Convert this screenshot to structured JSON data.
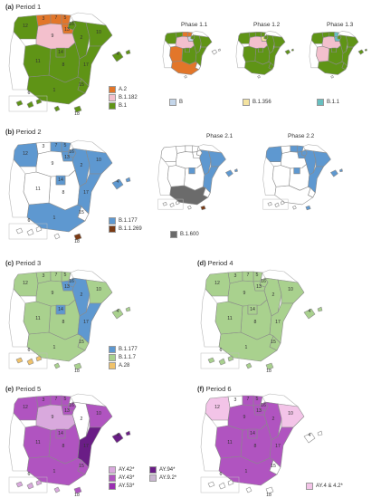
{
  "colors": {
    "A.2": "#e2762a",
    "B.1.182": "#f3c0cd",
    "B.1": "#5f9416",
    "B": "#c4d6ea",
    "B.1.356": "#f4e3a0",
    "B.1.1": "#67bfc0",
    "B.1.177": "#5e98d0",
    "B.1.1.269": "#7a3a14",
    "B.1.600": "#6b6b6b",
    "B.1.1.7": "#a9d18e",
    "A.28": "#f0c26a",
    "AY.42*": "#d9a9dd",
    "AY.43*": "#b054c0",
    "AY.53*": "#9a2fb2",
    "AY.94*": "#6a1d86",
    "AY.9.2*": "#c9b6d0",
    "AY.4 & 4.2*": "#f3c4e8",
    "empty": "#ffffff",
    "outline": "#8a8a8a"
  },
  "panels": {
    "p1": {
      "tag": "(a)",
      "title": "Period 1"
    },
    "p2": {
      "tag": "(b)",
      "title": "Period 2"
    },
    "p3": {
      "tag": "(c)",
      "title": "Period 3"
    },
    "p4": {
      "tag": "(d)",
      "title": "Period 4"
    },
    "p5": {
      "tag": "(e)",
      "title": "Period 5"
    },
    "p6": {
      "tag": "(f)",
      "title": "Period 6"
    }
  },
  "phases": {
    "p11": "Phase 1.1",
    "p12": "Phase 1.2",
    "p13": "Phase 1.3",
    "p21": "Phase 2.1",
    "p22": "Phase 2.2"
  },
  "region_numbers": [
    "1",
    "2",
    "3",
    "4",
    "5",
    "6",
    "7",
    "8",
    "9",
    "10",
    "11",
    "12",
    "13",
    "14",
    "15",
    "16",
    "17",
    "18"
  ],
  "legends": {
    "p1": [
      "A.2",
      "B.1.182",
      "B.1"
    ],
    "p1_phase11": [
      "B"
    ],
    "p1_phase12": [
      "B.1.356"
    ],
    "p1_phase13": [
      "B.1.1"
    ],
    "p2": [
      "B.1.177",
      "B.1.1.269"
    ],
    "p2_phase21": [
      "B.1.600"
    ],
    "p3": [
      "B.1.177",
      "B.1.1.7",
      "A.28"
    ],
    "p5_col1": [
      "AY.42*",
      "AY.43*",
      "AY.53*"
    ],
    "p5_col2": [
      "AY.94*",
      "AY.9.2*"
    ],
    "p6": [
      "AY.4 & 4.2*"
    ]
  },
  "map_fills": {
    "p1": {
      "1": "B.1",
      "2": "B.1",
      "3": "A.2",
      "4": "B.1",
      "5": "A.2",
      "6": "B.1",
      "7": "A.2",
      "8": "B.1",
      "9": "B.1.182",
      "10": "B.1",
      "11": "B.1",
      "12": "B.1",
      "13": "A.2",
      "14": "B.1",
      "15": "B.1",
      "16": "B.1",
      "17": "B.1",
      "18": "B.1",
      "ceuta": "B.1"
    },
    "p11": {
      "1": "A.2",
      "2": "B.1",
      "3": "B.1",
      "4": "empty",
      "5": "A.2",
      "6": "empty",
      "7": "A.2",
      "8": "B.1",
      "9": "B.1.182",
      "10": "B.1",
      "11": "A.2",
      "12": "B.1",
      "13": "B",
      "14": "B.1",
      "15": "empty",
      "16": "B.1",
      "17": "B.1",
      "18": "empty",
      "ceuta": "empty"
    },
    "p12": {
      "1": "B.1",
      "2": "B.1",
      "3": "B.1",
      "4": "B.1",
      "5": "B.1",
      "6": "empty",
      "7": "B.1",
      "8": "B.1",
      "9": "B.1.182",
      "10": "B.1",
      "11": "B.1",
      "12": "B.1",
      "13": "B.1.356",
      "14": "B.1",
      "15": "B.1",
      "16": "B.1",
      "17": "B.1",
      "18": "empty",
      "ceuta": "empty"
    },
    "p13": {
      "1": "B.1",
      "2": "B.1",
      "3": "B.1",
      "4": "B.1",
      "5": "B.1.1",
      "6": "empty",
      "7": "B.1",
      "8": "B.1",
      "9": "B.1.182",
      "10": "B.1",
      "11": "B.1.182",
      "12": "B.1",
      "13": "B.1.1",
      "14": "B.1",
      "15": "B.1",
      "16": "B.1",
      "17": "B.1",
      "18": "empty",
      "ceuta": "empty"
    },
    "p2": {
      "1": "B.1.177",
      "2": "B.1.177",
      "3": "empty",
      "4": "B.1.177",
      "5": "B.1.177",
      "6": "empty",
      "7": "B.1.177",
      "8": "empty",
      "9": "empty",
      "10": "B.1.177",
      "11": "empty",
      "12": "B.1.177",
      "13": "B.1.177",
      "14": "B.1.177",
      "15": "empty",
      "16": "B.1.177",
      "17": "B.1.177",
      "18": "B.1.1.269",
      "ceuta": "empty"
    },
    "p21": {
      "1": "B.1.600",
      "2": "B.1.177",
      "3": "empty",
      "4": "B.1.177",
      "5": "empty",
      "6": "empty",
      "7": "empty",
      "8": "empty",
      "9": "empty",
      "10": "B.1.177",
      "11": "empty",
      "12": "empty",
      "13": "empty",
      "14": "B.1.177",
      "15": "empty",
      "16": "empty",
      "17": "B.1.177",
      "18": "B.1.1.269",
      "ceuta": "empty"
    },
    "p22": {
      "1": "empty",
      "2": "B.1.177",
      "3": "empty",
      "4": "B.1.177",
      "5": "B.1.177",
      "6": "empty",
      "7": "B.1.177",
      "8": "empty",
      "9": "empty",
      "10": "B.1.177",
      "11": "empty",
      "12": "B.1.177",
      "13": "B.1.177",
      "14": "B.1.177",
      "15": "empty",
      "16": "B.1.177",
      "17": "B.1.177",
      "18": "B.1.177",
      "ceuta": "empty"
    },
    "p3": {
      "1": "B.1.1.7",
      "2": "B.1.177",
      "3": "B.1.1.7",
      "4": "B.1.1.7",
      "5": "B.1.1.7",
      "6": "A.28",
      "7": "B.1.1.7",
      "8": "B.1.1.7",
      "9": "B.1.1.7",
      "10": "B.1.1.7",
      "11": "B.1.1.7",
      "12": "B.1.1.7",
      "13": "B.1.177",
      "14": "B.1.177",
      "15": "B.1.1.7",
      "16": "B.1.177",
      "17": "B.1.177",
      "18": "B.1.1.7",
      "ceuta": "B.1.1.7"
    },
    "p4": {
      "1": "B.1.1.7",
      "2": "B.1.1.7",
      "3": "B.1.1.7",
      "4": "B.1.1.7",
      "5": "B.1.1.7",
      "6": "B.1.1.7",
      "7": "B.1.1.7",
      "8": "B.1.1.7",
      "9": "B.1.1.7",
      "10": "B.1.1.7",
      "11": "B.1.1.7",
      "12": "B.1.1.7",
      "13": "B.1.1.7",
      "14": "B.1.1.7",
      "15": "B.1.1.7",
      "16": "B.1.1.7",
      "17": "B.1.1.7",
      "18": "B.1.1.7",
      "ceuta": "B.1.1.7"
    },
    "p5": {
      "1": "AY.43*",
      "2": "empty",
      "3": "AY.43*",
      "4": "AY.94*",
      "5": "AY.43*",
      "6": "AY.42*",
      "7": "AY.43*",
      "8": "AY.43*",
      "9": "AY.42*",
      "10": "AY.43*",
      "11": "AY.43*",
      "12": "AY.43*",
      "13": "AY.43*",
      "14": "AY.43*",
      "15": "AY.43*",
      "16": "AY.43*",
      "17": "AY.94*",
      "18": "AY.43*",
      "ceuta": "AY.42*"
    },
    "p6": {
      "1": "AY.43*",
      "2": "AY.43*",
      "3": "empty",
      "4": "empty",
      "5": "AY.43*",
      "6": "empty",
      "7": "AY.43*",
      "8": "AY.43*",
      "9": "AY.43*",
      "10": "AY.4 & 4.2*",
      "11": "AY.43*",
      "12": "AY.4 & 4.2*",
      "13": "AY.43*",
      "14": "AY.43*",
      "15": "empty",
      "16": "AY.43*",
      "17": "AY.43*",
      "18": "empty",
      "ceuta": "empty"
    }
  }
}
